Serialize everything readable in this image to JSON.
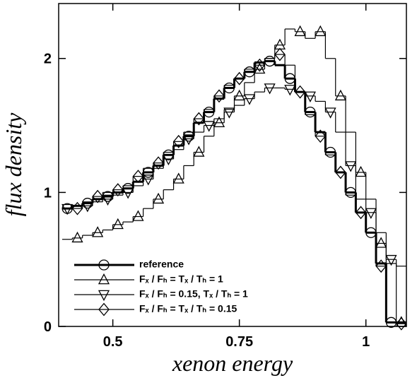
{
  "chart_data": {
    "type": "step",
    "xlabel": "xenon energy",
    "ylabel": "flux density",
    "x": [
      0.4,
      0.42,
      0.44,
      0.46,
      0.48,
      0.5,
      0.52,
      0.54,
      0.56,
      0.58,
      0.6,
      0.62,
      0.64,
      0.66,
      0.68,
      0.7,
      0.72,
      0.74,
      0.76,
      0.78,
      0.8,
      0.82,
      0.84,
      0.86,
      0.88,
      0.9,
      0.92,
      0.94,
      0.96,
      0.98,
      1.0,
      1.02,
      1.04,
      1.06
    ],
    "series": [
      {
        "name": "reference",
        "color": "#000000",
        "marker": "circle",
        "width": 3,
        "values": [
          0.88,
          0.9,
          0.92,
          0.95,
          0.97,
          1.0,
          1.03,
          1.08,
          1.15,
          1.2,
          1.28,
          1.35,
          1.42,
          1.52,
          1.6,
          1.7,
          1.78,
          1.85,
          1.9,
          1.97,
          1.98,
          1.95,
          1.85,
          1.75,
          1.6,
          1.45,
          1.3,
          1.15,
          1.0,
          0.85,
          0.7,
          0.47,
          0.03,
          0.03
        ]
      },
      {
        "name": "Fₓ / Fₕ = Tₓ / Tₕ = 1",
        "color": "#000000",
        "marker": "triangle",
        "width": 1.2,
        "values": [
          0.65,
          0.66,
          0.68,
          0.7,
          0.72,
          0.76,
          0.78,
          0.82,
          0.88,
          0.95,
          1.02,
          1.1,
          1.2,
          1.3,
          1.42,
          1.52,
          1.62,
          1.72,
          1.82,
          1.92,
          2.0,
          2.1,
          2.22,
          2.2,
          2.15,
          2.2,
          2.0,
          1.72,
          1.45,
          1.15,
          0.95,
          0.62,
          0.47,
          0.03
        ]
      },
      {
        "name": "Fₓ / Fₕ = 0.15, Tₓ / Tₕ = 1",
        "color": "#000000",
        "marker": "triangle-down",
        "width": 1.2,
        "values": [
          0.88,
          0.9,
          0.9,
          0.93,
          0.95,
          0.98,
          1.0,
          1.05,
          1.1,
          1.18,
          1.25,
          1.32,
          1.4,
          1.45,
          1.5,
          1.55,
          1.6,
          1.65,
          1.7,
          1.75,
          1.78,
          1.78,
          1.77,
          1.75,
          1.72,
          1.68,
          1.6,
          1.45,
          1.2,
          0.95,
          0.85,
          0.7,
          0.5,
          0.45
        ]
      },
      {
        "name": "Fₓ / Fₕ = Tₓ / Tₕ = 0.15",
        "color": "#000000",
        "marker": "diamond",
        "width": 1.2,
        "values": [
          0.88,
          0.88,
          0.92,
          0.97,
          1.0,
          1.02,
          1.05,
          1.12,
          1.18,
          1.22,
          1.3,
          1.38,
          1.45,
          1.55,
          1.62,
          1.72,
          1.8,
          1.85,
          1.92,
          1.95,
          2.0,
          2.03,
          1.95,
          1.75,
          1.58,
          1.42,
          1.28,
          1.15,
          0.98,
          0.85,
          0.7,
          0.45,
          0.03,
          0.02
        ]
      }
    ],
    "xlim": [
      0.393,
      1.08
    ],
    "ylim": [
      0,
      2.41
    ],
    "xticks": [
      0.5,
      0.75,
      1
    ],
    "yticks": [
      0,
      1,
      2
    ],
    "legend": "lower left"
  }
}
